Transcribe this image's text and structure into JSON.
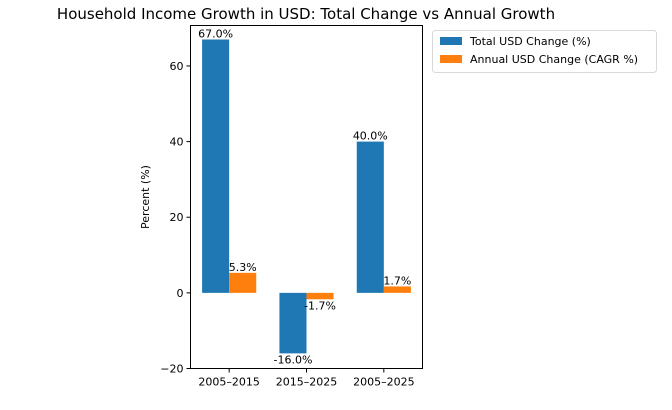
{
  "chart_data": {
    "type": "bar",
    "title": "Household Income Growth in USD: Total Change vs Annual Growth",
    "xlabel": "",
    "ylabel": "Percent (%)",
    "categories": [
      "2005–2015",
      "2015–2025",
      "2005–2025"
    ],
    "series": [
      {
        "name": "Total USD Change (%)",
        "color": "#1f77b4",
        "values": [
          67.0,
          -16.0,
          40.0
        ],
        "labels": [
          "67.0%",
          "-16.0%",
          "40.0%"
        ]
      },
      {
        "name": "Annual USD Change (CAGR %)",
        "color": "#ff7f0e",
        "values": [
          5.3,
          -1.7,
          1.7
        ],
        "labels": [
          "5.3%",
          "-1.7%",
          "1.7%"
        ]
      }
    ],
    "ylim": [
      -20,
      70.7
    ],
    "yticks": [
      -20,
      0,
      20,
      40,
      60
    ],
    "ytick_labels": [
      "−20",
      "0",
      "20",
      "40",
      "60"
    ],
    "grid": false,
    "legend_position": "outside-top-right"
  }
}
